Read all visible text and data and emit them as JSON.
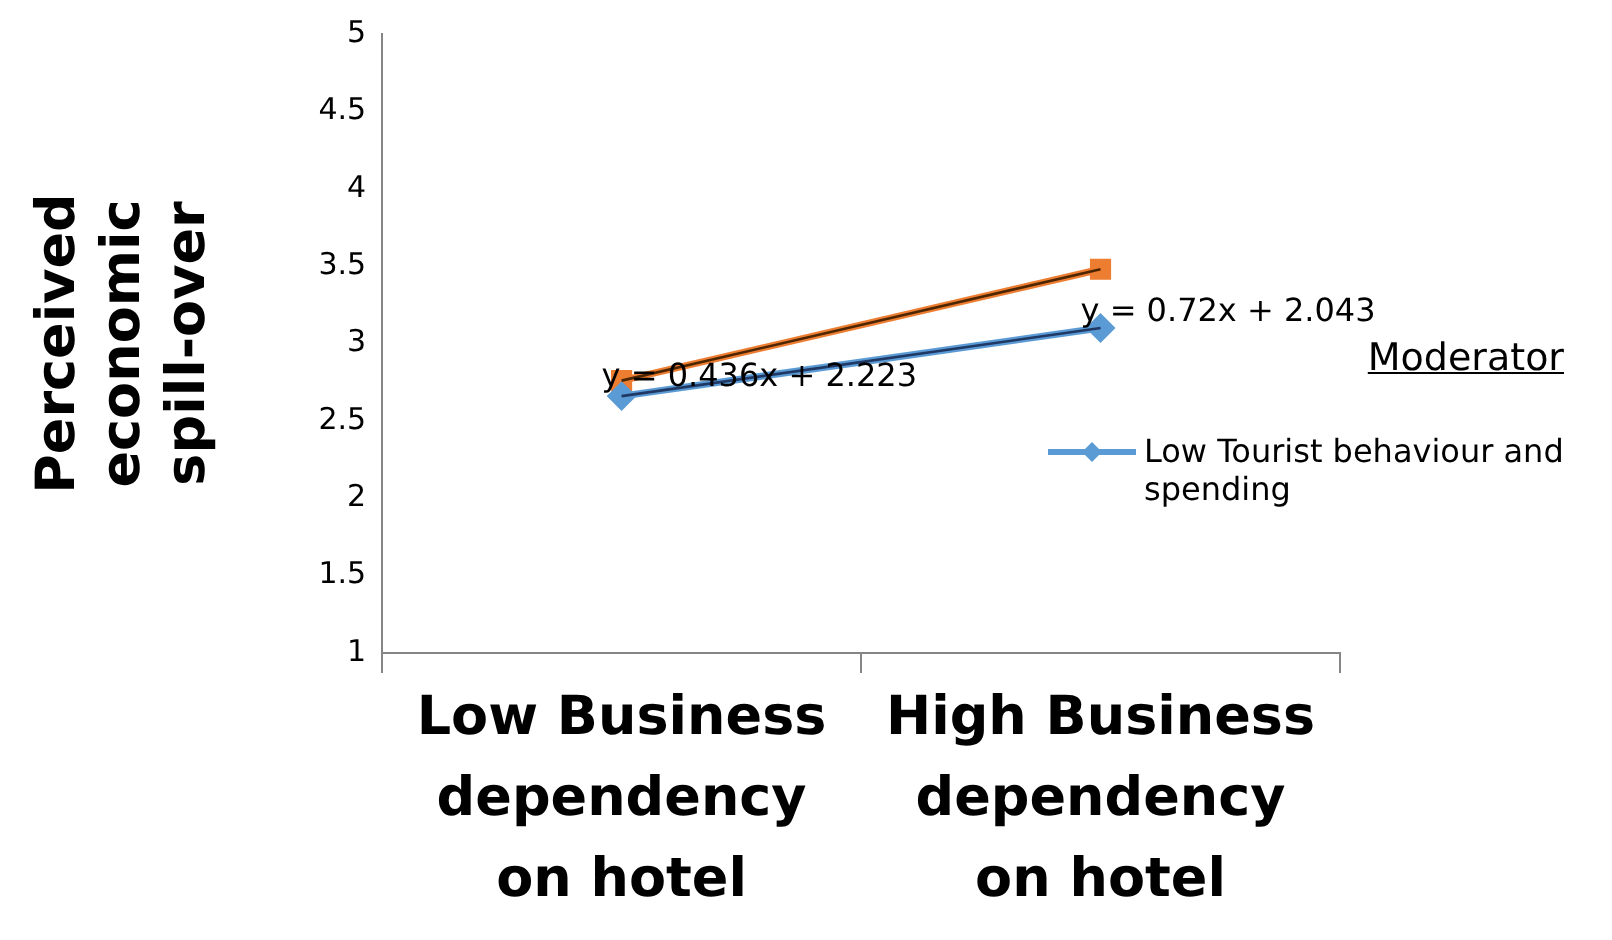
{
  "chart_data": {
    "type": "line",
    "ylabel": "Perceived economic spill-over",
    "legend_title": "Moderator",
    "categories": [
      "Low Business dependency on hotel",
      "High Business dependency on hotel"
    ],
    "series": [
      {
        "name": "Low Tourist behaviour and spending",
        "color": "#5b9bd5",
        "values": [
          2.66,
          3.1
        ],
        "marker": "diamond"
      },
      {
        "color": "#ed7d31",
        "values": [
          2.76,
          3.48
        ],
        "marker": "square"
      },
      {
        "type": "line",
        "color": "#1f3864",
        "values": [
          2.66,
          3.1
        ],
        "marker": "none"
      },
      {
        "type": "line",
        "color": "#4d2600",
        "values": [
          2.76,
          3.48
        ],
        "marker": "none"
      }
    ],
    "ylim": [
      1,
      5
    ],
    "yticks": [
      1,
      1.5,
      2,
      2.5,
      3,
      3.5,
      4,
      4.5,
      5
    ],
    "grid": false,
    "legend": "right",
    "annotations": [
      {
        "text": "y = 0.436x + 2.223",
        "x": "Low Business dependency on hotel",
        "y": 2.78
      },
      {
        "text": "y = 0.72x + 2.043",
        "x": "High Business dependency on hotel",
        "y": 3.2
      }
    ]
  }
}
